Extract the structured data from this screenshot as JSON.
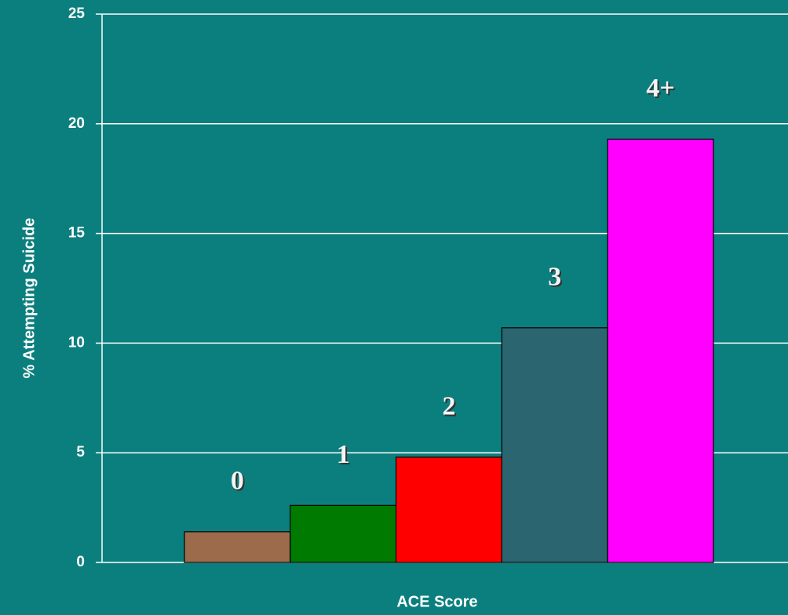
{
  "chart_data": {
    "type": "bar",
    "categories": [
      "0",
      "1",
      "2",
      "3",
      "4+"
    ],
    "values": [
      1.4,
      2.6,
      4.8,
      10.7,
      19.3
    ],
    "colors": [
      "#9b6b4c",
      "#007a00",
      "#ff0000",
      "#2b6570",
      "#ff00ff"
    ],
    "ylim": [
      0,
      25
    ],
    "yticks": [
      0,
      5,
      10,
      15,
      20,
      25
    ],
    "grid": true,
    "ylabel": "% Attempting Suicide",
    "xlabel": "ACE Score"
  }
}
